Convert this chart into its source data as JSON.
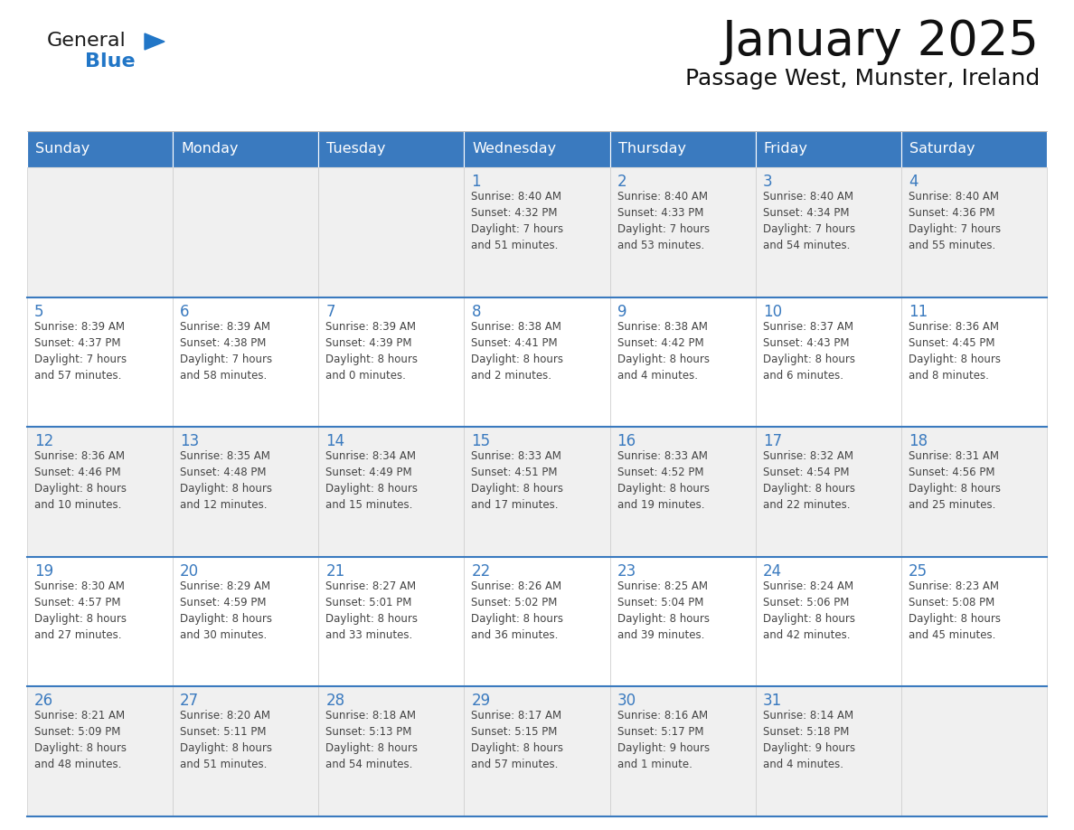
{
  "title": "January 2025",
  "subtitle": "Passage West, Munster, Ireland",
  "header_bg": "#3a7abf",
  "header_text_color": "#ffffff",
  "cell_bg_odd": "#f0f0f0",
  "cell_bg_even": "#ffffff",
  "border_color": "#3a7abf",
  "text_color": "#444444",
  "day_num_color": "#3a7abf",
  "days_of_week": [
    "Sunday",
    "Monday",
    "Tuesday",
    "Wednesday",
    "Thursday",
    "Friday",
    "Saturday"
  ],
  "weeks": [
    [
      {
        "day": "",
        "info": ""
      },
      {
        "day": "",
        "info": ""
      },
      {
        "day": "",
        "info": ""
      },
      {
        "day": "1",
        "info": "Sunrise: 8:40 AM\nSunset: 4:32 PM\nDaylight: 7 hours\nand 51 minutes."
      },
      {
        "day": "2",
        "info": "Sunrise: 8:40 AM\nSunset: 4:33 PM\nDaylight: 7 hours\nand 53 minutes."
      },
      {
        "day": "3",
        "info": "Sunrise: 8:40 AM\nSunset: 4:34 PM\nDaylight: 7 hours\nand 54 minutes."
      },
      {
        "day": "4",
        "info": "Sunrise: 8:40 AM\nSunset: 4:36 PM\nDaylight: 7 hours\nand 55 minutes."
      }
    ],
    [
      {
        "day": "5",
        "info": "Sunrise: 8:39 AM\nSunset: 4:37 PM\nDaylight: 7 hours\nand 57 minutes."
      },
      {
        "day": "6",
        "info": "Sunrise: 8:39 AM\nSunset: 4:38 PM\nDaylight: 7 hours\nand 58 minutes."
      },
      {
        "day": "7",
        "info": "Sunrise: 8:39 AM\nSunset: 4:39 PM\nDaylight: 8 hours\nand 0 minutes."
      },
      {
        "day": "8",
        "info": "Sunrise: 8:38 AM\nSunset: 4:41 PM\nDaylight: 8 hours\nand 2 minutes."
      },
      {
        "day": "9",
        "info": "Sunrise: 8:38 AM\nSunset: 4:42 PM\nDaylight: 8 hours\nand 4 minutes."
      },
      {
        "day": "10",
        "info": "Sunrise: 8:37 AM\nSunset: 4:43 PM\nDaylight: 8 hours\nand 6 minutes."
      },
      {
        "day": "11",
        "info": "Sunrise: 8:36 AM\nSunset: 4:45 PM\nDaylight: 8 hours\nand 8 minutes."
      }
    ],
    [
      {
        "day": "12",
        "info": "Sunrise: 8:36 AM\nSunset: 4:46 PM\nDaylight: 8 hours\nand 10 minutes."
      },
      {
        "day": "13",
        "info": "Sunrise: 8:35 AM\nSunset: 4:48 PM\nDaylight: 8 hours\nand 12 minutes."
      },
      {
        "day": "14",
        "info": "Sunrise: 8:34 AM\nSunset: 4:49 PM\nDaylight: 8 hours\nand 15 minutes."
      },
      {
        "day": "15",
        "info": "Sunrise: 8:33 AM\nSunset: 4:51 PM\nDaylight: 8 hours\nand 17 minutes."
      },
      {
        "day": "16",
        "info": "Sunrise: 8:33 AM\nSunset: 4:52 PM\nDaylight: 8 hours\nand 19 minutes."
      },
      {
        "day": "17",
        "info": "Sunrise: 8:32 AM\nSunset: 4:54 PM\nDaylight: 8 hours\nand 22 minutes."
      },
      {
        "day": "18",
        "info": "Sunrise: 8:31 AM\nSunset: 4:56 PM\nDaylight: 8 hours\nand 25 minutes."
      }
    ],
    [
      {
        "day": "19",
        "info": "Sunrise: 8:30 AM\nSunset: 4:57 PM\nDaylight: 8 hours\nand 27 minutes."
      },
      {
        "day": "20",
        "info": "Sunrise: 8:29 AM\nSunset: 4:59 PM\nDaylight: 8 hours\nand 30 minutes."
      },
      {
        "day": "21",
        "info": "Sunrise: 8:27 AM\nSunset: 5:01 PM\nDaylight: 8 hours\nand 33 minutes."
      },
      {
        "day": "22",
        "info": "Sunrise: 8:26 AM\nSunset: 5:02 PM\nDaylight: 8 hours\nand 36 minutes."
      },
      {
        "day": "23",
        "info": "Sunrise: 8:25 AM\nSunset: 5:04 PM\nDaylight: 8 hours\nand 39 minutes."
      },
      {
        "day": "24",
        "info": "Sunrise: 8:24 AM\nSunset: 5:06 PM\nDaylight: 8 hours\nand 42 minutes."
      },
      {
        "day": "25",
        "info": "Sunrise: 8:23 AM\nSunset: 5:08 PM\nDaylight: 8 hours\nand 45 minutes."
      }
    ],
    [
      {
        "day": "26",
        "info": "Sunrise: 8:21 AM\nSunset: 5:09 PM\nDaylight: 8 hours\nand 48 minutes."
      },
      {
        "day": "27",
        "info": "Sunrise: 8:20 AM\nSunset: 5:11 PM\nDaylight: 8 hours\nand 51 minutes."
      },
      {
        "day": "28",
        "info": "Sunrise: 8:18 AM\nSunset: 5:13 PM\nDaylight: 8 hours\nand 54 minutes."
      },
      {
        "day": "29",
        "info": "Sunrise: 8:17 AM\nSunset: 5:15 PM\nDaylight: 8 hours\nand 57 minutes."
      },
      {
        "day": "30",
        "info": "Sunrise: 8:16 AM\nSunset: 5:17 PM\nDaylight: 9 hours\nand 1 minute."
      },
      {
        "day": "31",
        "info": "Sunrise: 8:14 AM\nSunset: 5:18 PM\nDaylight: 9 hours\nand 4 minutes."
      },
      {
        "day": "",
        "info": ""
      }
    ]
  ],
  "logo_general_color": "#1a1a1a",
  "logo_blue_color": "#2176c7",
  "logo_triangle_color": "#2176c7",
  "fig_width": 11.88,
  "fig_height": 9.18,
  "dpi": 100
}
